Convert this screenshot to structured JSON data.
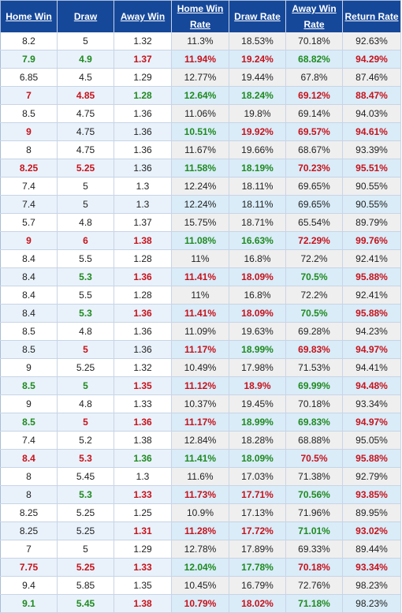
{
  "headers": [
    "Home Win",
    "Draw",
    "Away Win",
    "Home Win Rate",
    "Draw Rate",
    "Away Win Rate",
    "Return Rate"
  ],
  "colors": {
    "header_bg": "#16489a",
    "up": "#1f8a1f",
    "down": "#c8121a"
  },
  "rows": [
    {
      "cells": [
        "8.2",
        "5",
        "1.32",
        "11.3%",
        "18.53%",
        "70.18%",
        "92.63%"
      ],
      "styles": [
        "",
        "",
        "",
        "",
        "",
        "",
        ""
      ]
    },
    {
      "cells": [
        "7.9",
        "4.9",
        "1.37",
        "11.94%",
        "19.24%",
        "68.82%",
        "94.29%"
      ],
      "styles": [
        "green",
        "green",
        "red",
        "red",
        "red",
        "green",
        "red"
      ]
    },
    {
      "cells": [
        "6.85",
        "4.5",
        "1.29",
        "12.77%",
        "19.44%",
        "67.8%",
        "87.46%"
      ],
      "styles": [
        "",
        "",
        "",
        "",
        "",
        "",
        ""
      ]
    },
    {
      "cells": [
        "7",
        "4.85",
        "1.28",
        "12.64%",
        "18.24%",
        "69.12%",
        "88.47%"
      ],
      "styles": [
        "red",
        "red",
        "green",
        "green",
        "green",
        "red",
        "red"
      ]
    },
    {
      "cells": [
        "8.5",
        "4.75",
        "1.36",
        "11.06%",
        "19.8%",
        "69.14%",
        "94.03%"
      ],
      "styles": [
        "",
        "",
        "",
        "",
        "",
        "",
        ""
      ]
    },
    {
      "cells": [
        "9",
        "4.75",
        "1.36",
        "10.51%",
        "19.92%",
        "69.57%",
        "94.61%"
      ],
      "styles": [
        "red",
        "",
        "",
        "green",
        "red",
        "red",
        "red"
      ]
    },
    {
      "cells": [
        "8",
        "4.75",
        "1.36",
        "11.67%",
        "19.66%",
        "68.67%",
        "93.39%"
      ],
      "styles": [
        "",
        "",
        "",
        "",
        "",
        "",
        ""
      ]
    },
    {
      "cells": [
        "8.25",
        "5.25",
        "1.36",
        "11.58%",
        "18.19%",
        "70.23%",
        "95.51%"
      ],
      "styles": [
        "red",
        "red",
        "",
        "green",
        "green",
        "red",
        "red"
      ]
    },
    {
      "cells": [
        "7.4",
        "5",
        "1.3",
        "12.24%",
        "18.11%",
        "69.65%",
        "90.55%"
      ],
      "styles": [
        "",
        "",
        "",
        "",
        "",
        "",
        ""
      ]
    },
    {
      "cells": [
        "7.4",
        "5",
        "1.3",
        "12.24%",
        "18.11%",
        "69.65%",
        "90.55%"
      ],
      "styles": [
        "",
        "",
        "",
        "",
        "",
        "",
        ""
      ]
    },
    {
      "cells": [
        "5.7",
        "4.8",
        "1.37",
        "15.75%",
        "18.71%",
        "65.54%",
        "89.79%"
      ],
      "styles": [
        "",
        "",
        "",
        "",
        "",
        "",
        ""
      ]
    },
    {
      "cells": [
        "9",
        "6",
        "1.38",
        "11.08%",
        "16.63%",
        "72.29%",
        "99.76%"
      ],
      "styles": [
        "red",
        "red",
        "red",
        "green",
        "green",
        "red",
        "red"
      ]
    },
    {
      "cells": [
        "8.4",
        "5.5",
        "1.28",
        "11%",
        "16.8%",
        "72.2%",
        "92.41%"
      ],
      "styles": [
        "",
        "",
        "",
        "",
        "",
        "",
        ""
      ]
    },
    {
      "cells": [
        "8.4",
        "5.3",
        "1.36",
        "11.41%",
        "18.09%",
        "70.5%",
        "95.88%"
      ],
      "styles": [
        "",
        "green",
        "red",
        "red",
        "red",
        "green",
        "red"
      ]
    },
    {
      "cells": [
        "8.4",
        "5.5",
        "1.28",
        "11%",
        "16.8%",
        "72.2%",
        "92.41%"
      ],
      "styles": [
        "",
        "",
        "",
        "",
        "",
        "",
        ""
      ]
    },
    {
      "cells": [
        "8.4",
        "5.3",
        "1.36",
        "11.41%",
        "18.09%",
        "70.5%",
        "95.88%"
      ],
      "styles": [
        "",
        "green",
        "red",
        "red",
        "red",
        "green",
        "red"
      ]
    },
    {
      "cells": [
        "8.5",
        "4.8",
        "1.36",
        "11.09%",
        "19.63%",
        "69.28%",
        "94.23%"
      ],
      "styles": [
        "",
        "",
        "",
        "",
        "",
        "",
        ""
      ]
    },
    {
      "cells": [
        "8.5",
        "5",
        "1.36",
        "11.17%",
        "18.99%",
        "69.83%",
        "94.97%"
      ],
      "styles": [
        "",
        "red",
        "",
        "red",
        "green",
        "red",
        "red"
      ]
    },
    {
      "cells": [
        "9",
        "5.25",
        "1.32",
        "10.49%",
        "17.98%",
        "71.53%",
        "94.41%"
      ],
      "styles": [
        "",
        "",
        "",
        "",
        "",
        "",
        ""
      ]
    },
    {
      "cells": [
        "8.5",
        "5",
        "1.35",
        "11.12%",
        "18.9%",
        "69.99%",
        "94.48%"
      ],
      "styles": [
        "green",
        "green",
        "red",
        "red",
        "red",
        "green",
        "red"
      ]
    },
    {
      "cells": [
        "9",
        "4.8",
        "1.33",
        "10.37%",
        "19.45%",
        "70.18%",
        "93.34%"
      ],
      "styles": [
        "",
        "",
        "",
        "",
        "",
        "",
        ""
      ]
    },
    {
      "cells": [
        "8.5",
        "5",
        "1.36",
        "11.17%",
        "18.99%",
        "69.83%",
        "94.97%"
      ],
      "styles": [
        "green",
        "red",
        "red",
        "red",
        "green",
        "green",
        "red"
      ]
    },
    {
      "cells": [
        "7.4",
        "5.2",
        "1.38",
        "12.84%",
        "18.28%",
        "68.88%",
        "95.05%"
      ],
      "styles": [
        "",
        "",
        "",
        "",
        "",
        "",
        ""
      ]
    },
    {
      "cells": [
        "8.4",
        "5.3",
        "1.36",
        "11.41%",
        "18.09%",
        "70.5%",
        "95.88%"
      ],
      "styles": [
        "red",
        "red",
        "green",
        "green",
        "green",
        "red",
        "red"
      ]
    },
    {
      "cells": [
        "8",
        "5.45",
        "1.3",
        "11.6%",
        "17.03%",
        "71.38%",
        "92.79%"
      ],
      "styles": [
        "",
        "",
        "",
        "",
        "",
        "",
        ""
      ]
    },
    {
      "cells": [
        "8",
        "5.3",
        "1.33",
        "11.73%",
        "17.71%",
        "70.56%",
        "93.85%"
      ],
      "styles": [
        "",
        "green",
        "red",
        "red",
        "red",
        "green",
        "red"
      ]
    },
    {
      "cells": [
        "8.25",
        "5.25",
        "1.25",
        "10.9%",
        "17.13%",
        "71.96%",
        "89.95%"
      ],
      "styles": [
        "",
        "",
        "",
        "",
        "",
        "",
        ""
      ]
    },
    {
      "cells": [
        "8.25",
        "5.25",
        "1.31",
        "11.28%",
        "17.72%",
        "71.01%",
        "93.02%"
      ],
      "styles": [
        "",
        "",
        "red",
        "red",
        "red",
        "green",
        "red"
      ]
    },
    {
      "cells": [
        "7",
        "5",
        "1.29",
        "12.78%",
        "17.89%",
        "69.33%",
        "89.44%"
      ],
      "styles": [
        "",
        "",
        "",
        "",
        "",
        "",
        ""
      ]
    },
    {
      "cells": [
        "7.75",
        "5.25",
        "1.33",
        "12.04%",
        "17.78%",
        "70.18%",
        "93.34%"
      ],
      "styles": [
        "red",
        "red",
        "red",
        "green",
        "green",
        "red",
        "red"
      ]
    },
    {
      "cells": [
        "9.4",
        "5.85",
        "1.35",
        "10.45%",
        "16.79%",
        "72.76%",
        "98.23%"
      ],
      "styles": [
        "",
        "",
        "",
        "",
        "",
        "",
        ""
      ]
    },
    {
      "cells": [
        "9.1",
        "5.45",
        "1.38",
        "10.79%",
        "18.02%",
        "71.18%",
        "98.23%"
      ],
      "styles": [
        "green",
        "green",
        "red",
        "red",
        "red",
        "green",
        ""
      ]
    }
  ]
}
